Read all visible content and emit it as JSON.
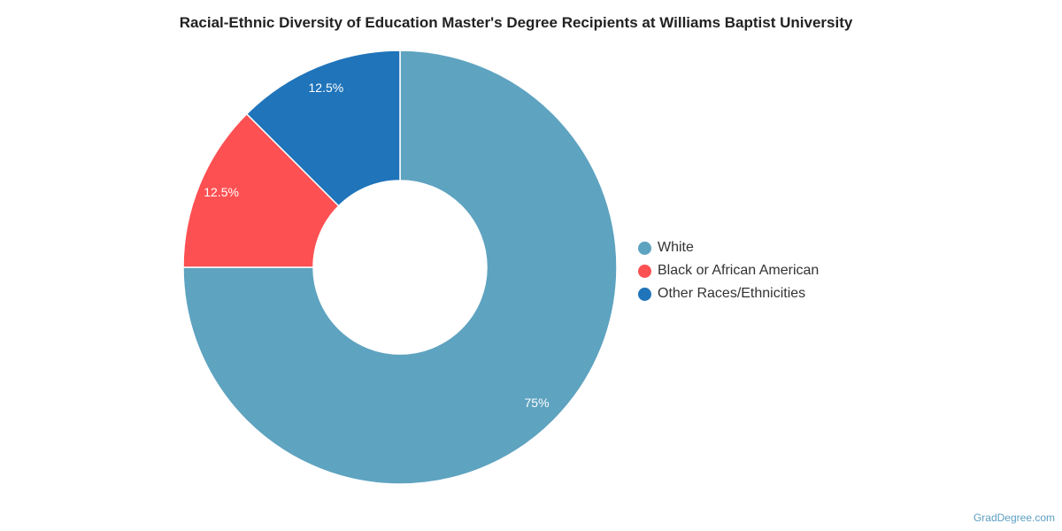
{
  "chart_data": {
    "type": "pie",
    "variant": "donut",
    "title": "Racial-Ethnic Diversity of Education Master's Degree Recipients at Williams Baptist University",
    "categories": [
      "White",
      "Black or African American",
      "Other Races/Ethnicities"
    ],
    "values": [
      75,
      12.5,
      12.5
    ],
    "value_labels": [
      "75%",
      "12.5%",
      "12.5%"
    ],
    "colors": [
      "#5ea3c0",
      "#fd5052",
      "#1f74ba"
    ],
    "legend_position": "right"
  },
  "watermark": "GradDegree.com"
}
